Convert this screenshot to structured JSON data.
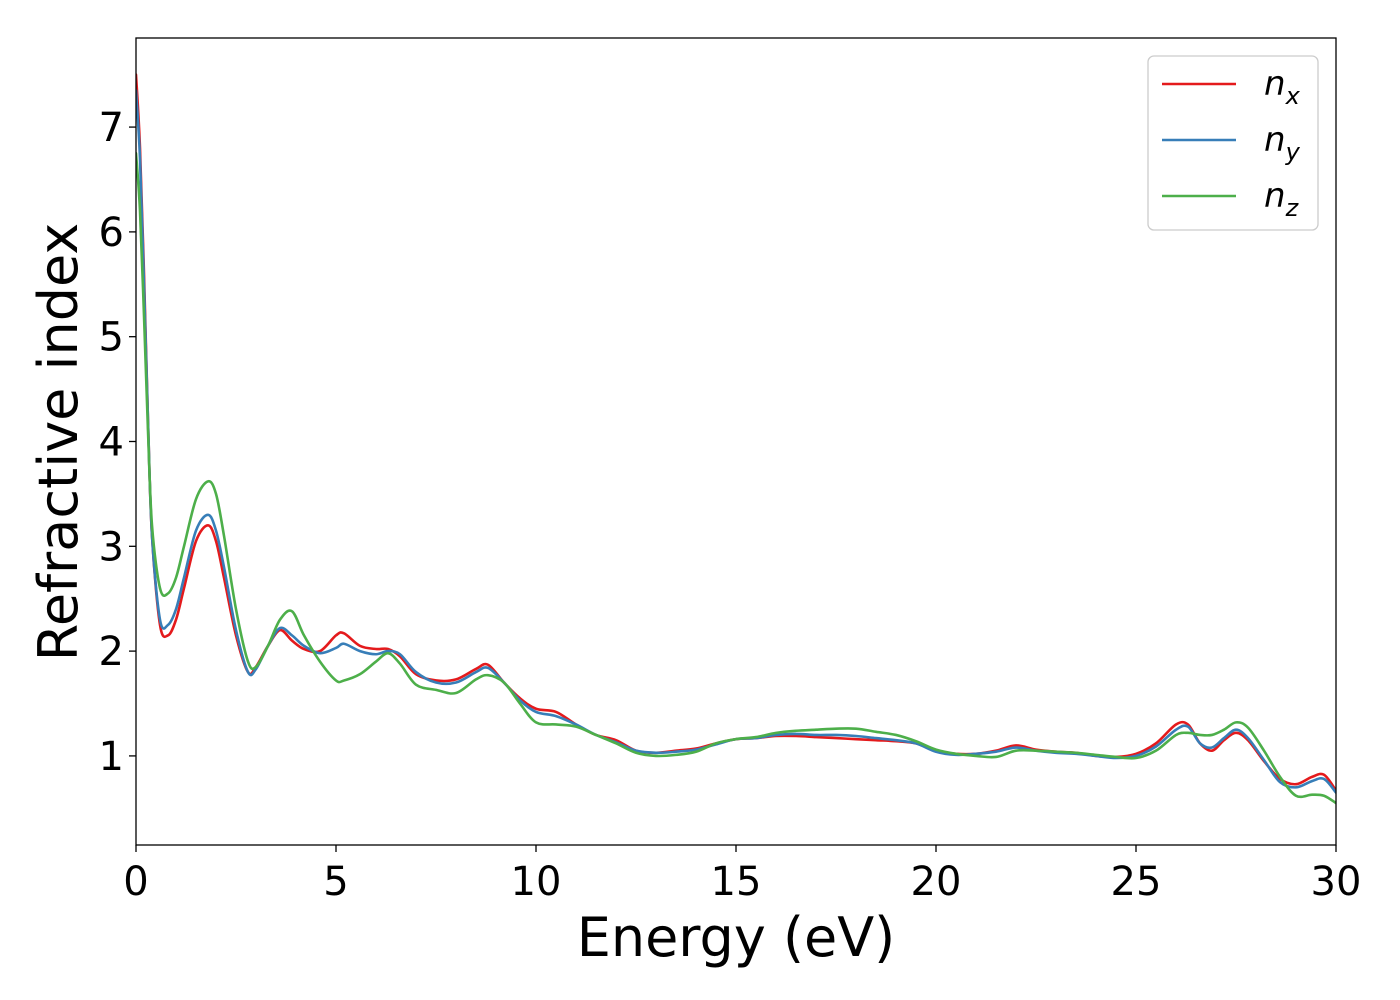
{
  "chart_data": {
    "type": "line",
    "title": "",
    "xlabel": "Energy (eV)",
    "ylabel": "Refractive index",
    "xlim": [
      0,
      30
    ],
    "ylim": [
      0.15,
      7.85
    ],
    "xticks": [
      0,
      5,
      10,
      15,
      20,
      25,
      30
    ],
    "yticks": [
      1,
      2,
      3,
      4,
      5,
      6,
      7
    ],
    "grid": false,
    "legend_position": "top-right",
    "series": [
      {
        "name": "n",
        "subscript": "x",
        "color": "#e41a1c",
        "x": [
          0,
          0.1,
          0.2,
          0.3,
          0.4,
          0.6,
          0.8,
          1.0,
          1.2,
          1.5,
          1.8,
          2.0,
          2.2,
          2.5,
          2.8,
          3.0,
          3.3,
          3.6,
          3.9,
          4.2,
          4.6,
          5.0,
          5.2,
          5.6,
          6.0,
          6.3,
          6.6,
          7.0,
          7.5,
          8.0,
          8.5,
          8.8,
          9.2,
          9.6,
          10.0,
          10.5,
          11.0,
          11.5,
          12.0,
          12.5,
          13.0,
          13.5,
          14.0,
          14.5,
          15.0,
          15.5,
          16.0,
          16.5,
          17.0,
          17.5,
          18.0,
          18.5,
          19.0,
          19.5,
          20.0,
          20.5,
          21.0,
          21.5,
          22.0,
          22.5,
          23.0,
          23.5,
          24.0,
          24.5,
          25.0,
          25.5,
          26.0,
          26.3,
          26.6,
          26.9,
          27.2,
          27.5,
          27.8,
          28.2,
          28.6,
          29.0,
          29.4,
          29.7,
          30.0
        ],
        "y": [
          7.5,
          6.8,
          5.6,
          4.2,
          3.1,
          2.25,
          2.15,
          2.3,
          2.6,
          3.05,
          3.2,
          3.05,
          2.7,
          2.15,
          1.8,
          1.85,
          2.05,
          2.2,
          2.1,
          2.02,
          2.0,
          2.15,
          2.17,
          2.05,
          2.02,
          2.02,
          1.95,
          1.78,
          1.72,
          1.73,
          1.83,
          1.87,
          1.7,
          1.55,
          1.45,
          1.42,
          1.3,
          1.2,
          1.15,
          1.05,
          1.03,
          1.05,
          1.07,
          1.12,
          1.16,
          1.17,
          1.19,
          1.19,
          1.18,
          1.17,
          1.16,
          1.15,
          1.14,
          1.12,
          1.05,
          1.02,
          1.02,
          1.05,
          1.1,
          1.06,
          1.04,
          1.03,
          1.0,
          0.99,
          1.02,
          1.12,
          1.3,
          1.3,
          1.12,
          1.05,
          1.15,
          1.22,
          1.15,
          0.95,
          0.78,
          0.73,
          0.8,
          0.82,
          0.67
        ]
      },
      {
        "name": "n",
        "subscript": "y",
        "color": "#377eb8",
        "x": [
          0,
          0.1,
          0.2,
          0.3,
          0.4,
          0.6,
          0.8,
          1.0,
          1.2,
          1.5,
          1.8,
          2.0,
          2.2,
          2.5,
          2.8,
          3.0,
          3.3,
          3.6,
          3.9,
          4.2,
          4.6,
          5.0,
          5.2,
          5.6,
          6.0,
          6.3,
          6.6,
          7.0,
          7.5,
          8.0,
          8.5,
          8.8,
          9.2,
          9.6,
          10.0,
          10.5,
          11.0,
          11.5,
          12.0,
          12.5,
          13.0,
          13.5,
          14.0,
          14.5,
          15.0,
          15.5,
          16.0,
          16.5,
          17.0,
          17.5,
          18.0,
          18.5,
          19.0,
          19.5,
          20.0,
          20.5,
          21.0,
          21.5,
          22.0,
          22.5,
          23.0,
          23.5,
          24.0,
          24.5,
          25.0,
          25.5,
          26.0,
          26.3,
          26.6,
          26.9,
          27.2,
          27.5,
          27.8,
          28.2,
          28.6,
          29.0,
          29.4,
          29.7,
          30.0
        ],
        "y": [
          7.35,
          6.7,
          5.5,
          4.2,
          3.1,
          2.3,
          2.25,
          2.4,
          2.7,
          3.15,
          3.3,
          3.15,
          2.8,
          2.2,
          1.8,
          1.83,
          2.05,
          2.22,
          2.15,
          2.05,
          1.98,
          2.03,
          2.07,
          2.0,
          1.97,
          2.0,
          1.97,
          1.8,
          1.7,
          1.7,
          1.8,
          1.84,
          1.7,
          1.53,
          1.42,
          1.38,
          1.3,
          1.2,
          1.13,
          1.05,
          1.03,
          1.04,
          1.06,
          1.11,
          1.16,
          1.17,
          1.2,
          1.21,
          1.2,
          1.2,
          1.19,
          1.17,
          1.15,
          1.12,
          1.04,
          1.01,
          1.02,
          1.04,
          1.08,
          1.05,
          1.03,
          1.02,
          1.0,
          0.98,
          1.0,
          1.09,
          1.25,
          1.28,
          1.12,
          1.08,
          1.17,
          1.25,
          1.17,
          0.96,
          0.75,
          0.7,
          0.76,
          0.78,
          0.65
        ]
      },
      {
        "name": "n",
        "subscript": "z",
        "color": "#4daf4a",
        "x": [
          0,
          0.1,
          0.2,
          0.3,
          0.4,
          0.6,
          0.8,
          1.0,
          1.2,
          1.5,
          1.8,
          2.0,
          2.2,
          2.5,
          2.8,
          3.0,
          3.3,
          3.6,
          3.9,
          4.2,
          4.6,
          5.0,
          5.2,
          5.6,
          6.0,
          6.3,
          6.6,
          7.0,
          7.5,
          8.0,
          8.5,
          8.8,
          9.2,
          9.6,
          10.0,
          10.5,
          11.0,
          11.5,
          12.0,
          12.5,
          13.0,
          13.5,
          14.0,
          14.5,
          15.0,
          15.5,
          16.0,
          16.5,
          17.0,
          17.5,
          18.0,
          18.5,
          19.0,
          19.5,
          20.0,
          20.5,
          21.0,
          21.5,
          22.0,
          22.5,
          23.0,
          23.5,
          24.0,
          24.5,
          25.0,
          25.5,
          26.0,
          26.3,
          26.6,
          26.9,
          27.2,
          27.5,
          27.8,
          28.2,
          28.6,
          29.0,
          29.4,
          29.7,
          30.0
        ],
        "y": [
          6.75,
          6.2,
          5.2,
          4.1,
          3.2,
          2.6,
          2.55,
          2.7,
          3.0,
          3.45,
          3.62,
          3.5,
          3.1,
          2.4,
          1.9,
          1.85,
          2.05,
          2.3,
          2.38,
          2.15,
          1.9,
          1.72,
          1.72,
          1.78,
          1.9,
          1.98,
          1.88,
          1.68,
          1.63,
          1.6,
          1.73,
          1.77,
          1.7,
          1.5,
          1.32,
          1.3,
          1.28,
          1.2,
          1.12,
          1.03,
          1.0,
          1.01,
          1.04,
          1.12,
          1.16,
          1.18,
          1.22,
          1.24,
          1.25,
          1.26,
          1.26,
          1.23,
          1.2,
          1.14,
          1.06,
          1.02,
          1.0,
          0.99,
          1.05,
          1.05,
          1.04,
          1.03,
          1.01,
          0.99,
          0.98,
          1.05,
          1.2,
          1.22,
          1.2,
          1.2,
          1.25,
          1.32,
          1.27,
          1.05,
          0.8,
          0.62,
          0.63,
          0.62,
          0.55
        ]
      }
    ]
  }
}
